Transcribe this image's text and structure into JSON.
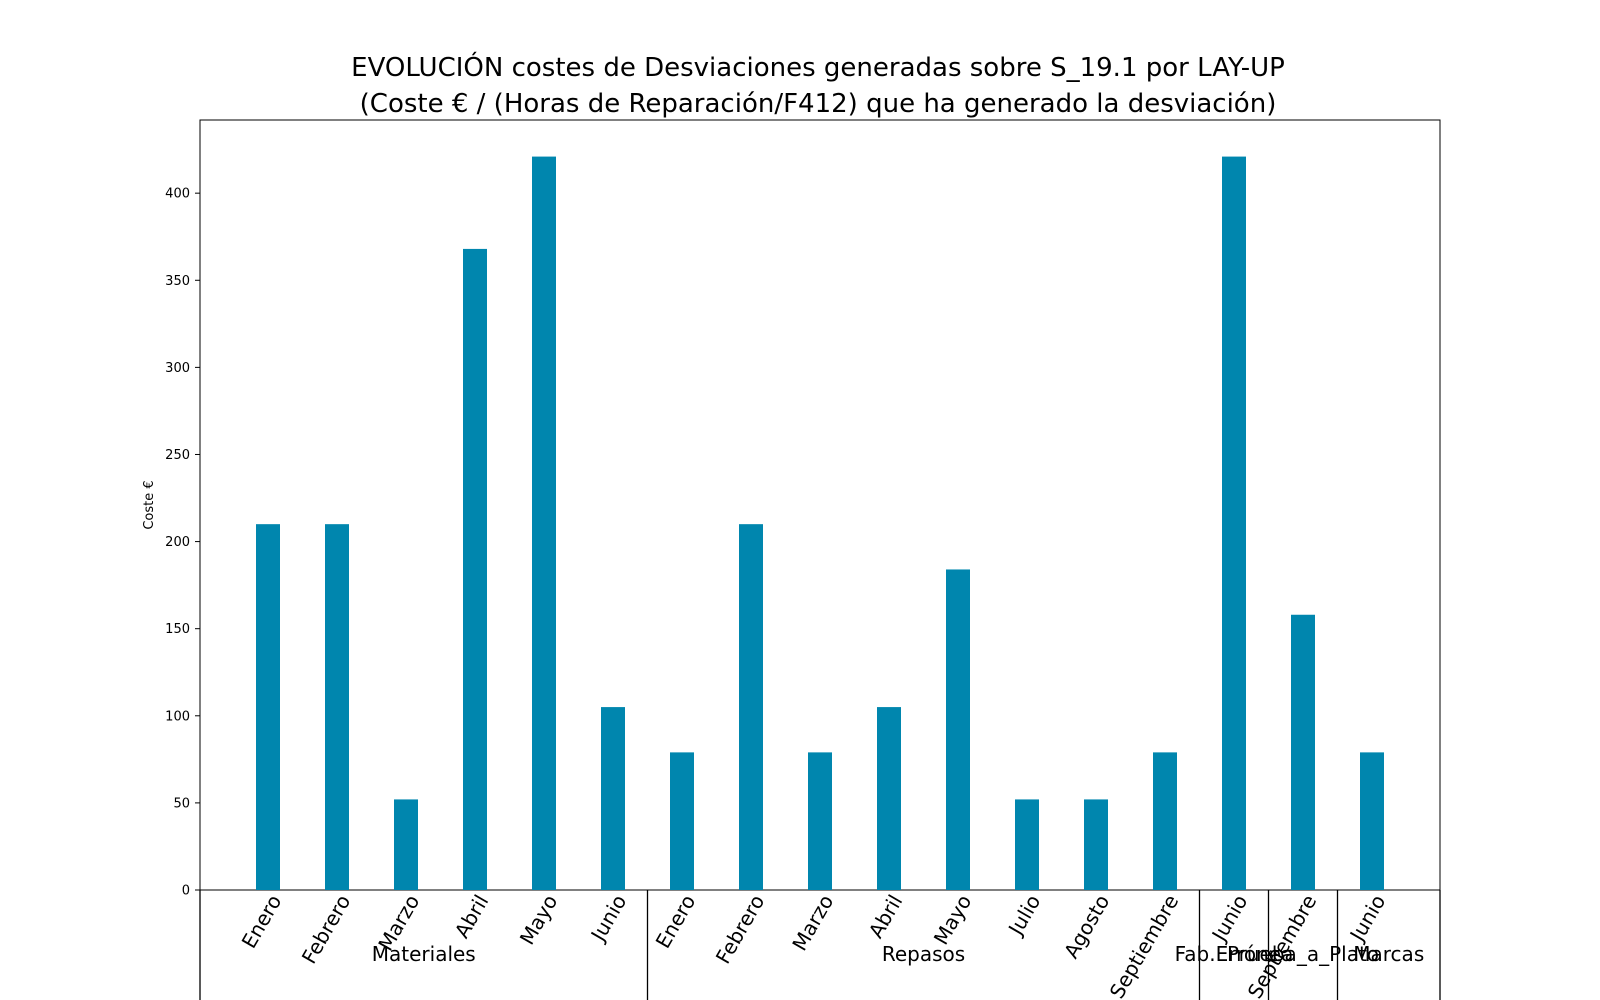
{
  "chart_data": {
    "type": "bar",
    "title_line1": "EVOLUCIÓN costes de Desviaciones  generadas  sobre S_19.1 por LAY-UP",
    "title_line2": "(Coste € / (Horas de Reparación/F412) que ha generado la desviación)",
    "xlabel": "",
    "ylabel": "Coste €",
    "ylim": [
      0,
      442
    ],
    "yticks": [
      0,
      50,
      100,
      150,
      200,
      250,
      300,
      350,
      400
    ],
    "grid": false,
    "bar_color": "#0086ae",
    "categories": [
      "Enero",
      "Febrero",
      "Marzo",
      "Abril",
      "Mayo",
      "Junio",
      "Enero",
      "Febrero",
      "Marzo",
      "Abril",
      "Mayo",
      "Julio",
      "Agosto",
      "Septiembre",
      "Junio",
      "Septiembre",
      "Junio"
    ],
    "values": [
      210,
      210,
      52,
      368,
      421,
      105,
      79,
      210,
      79,
      105,
      184,
      52,
      52,
      79,
      421,
      158,
      79
    ],
    "groups": [
      {
        "label": "Materiales",
        "start": 0,
        "end": 5
      },
      {
        "label": "Repasos",
        "start": 6,
        "end": 13
      },
      {
        "label": "Fab.Errónea",
        "start": 14,
        "end": 14
      },
      {
        "label": "Prueba_a_Plato",
        "start": 15,
        "end": 15
      },
      {
        "label": "Marcas",
        "start": 16,
        "end": 16
      }
    ]
  }
}
